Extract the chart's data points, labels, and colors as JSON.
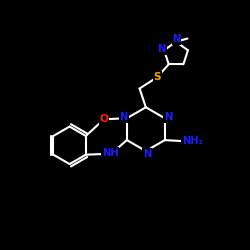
{
  "bg_color": "#000000",
  "bond_color": "#ffffff",
  "N_color": "#1c1cff",
  "S_color": "#ffa500",
  "O_color": "#ff2200",
  "figsize": [
    2.5,
    2.5
  ],
  "dpi": 100,
  "xlim": [
    -1,
    11
  ],
  "ylim": [
    -1,
    11
  ],
  "lw": 1.5,
  "fs": 7.2
}
